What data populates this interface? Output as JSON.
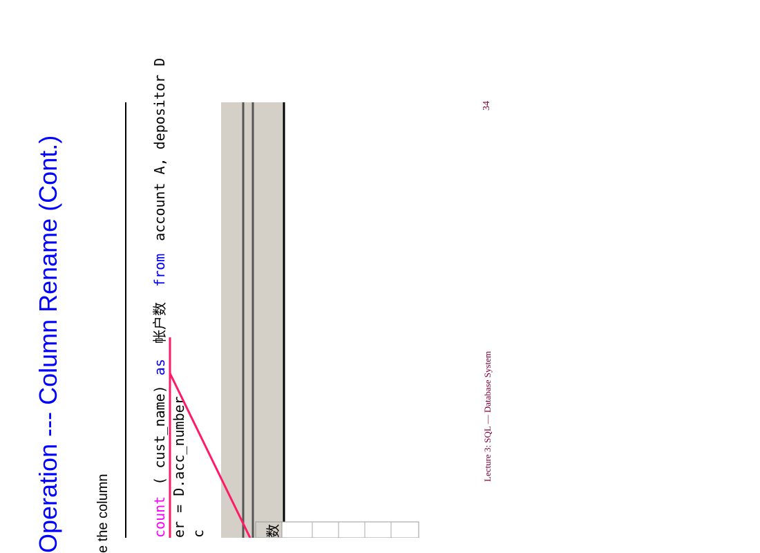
{
  "slide": {
    "title": "Operation --- Column Rename (Cont.)",
    "bullet": "e the column",
    "footer": "Lecture 3: SQL — Database System",
    "page_number": "34"
  },
  "code": {
    "line1": {
      "kw_count": "count",
      "args": "( cust_name)",
      "kw_as": "as",
      "alias": "帐户数",
      "kw_from": "from",
      "tables": "account A, depositor D"
    },
    "line2": "er = D.acc_number",
    "line3": "c"
  },
  "result_grid": {
    "header_fragment": "数"
  },
  "colors": {
    "title": "#0000ff",
    "footer": "#800033",
    "keyword_pink": "#ff00ff",
    "keyword_blue": "#0000ff",
    "annotation": "#ff1a66",
    "grid_bg": "#d4d0c8"
  }
}
